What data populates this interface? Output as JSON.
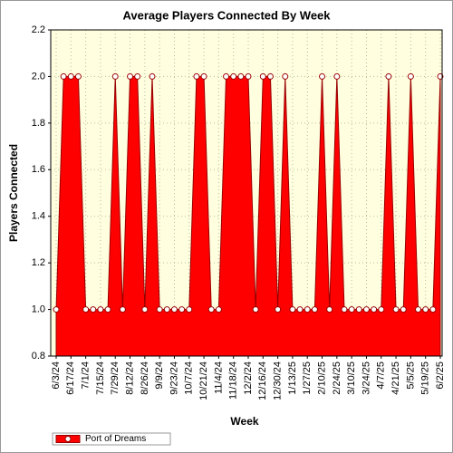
{
  "chart_data": {
    "type": "area",
    "title": "Average Players Connected By Week",
    "x_label": "Week",
    "y_label": "Players Connected",
    "categories": [
      "6/3/24",
      null,
      "6/17/24",
      null,
      "7/1/24",
      null,
      "7/15/24",
      null,
      "7/29/24",
      null,
      "8/12/24",
      null,
      "8/26/24",
      null,
      "9/9/24",
      null,
      "9/23/24",
      null,
      "10/7/24",
      null,
      "10/21/24",
      null,
      "11/4/24",
      null,
      "11/18/24",
      null,
      "12/2/24",
      null,
      "12/16/24",
      null,
      "12/30/24",
      null,
      "1/13/25",
      null,
      "1/27/25",
      null,
      "2/10/25",
      null,
      "2/24/25",
      null,
      "3/10/25",
      null,
      "3/24/25",
      null,
      "4/7/25",
      null,
      "4/21/25",
      null,
      "5/5/25",
      null,
      "5/19/25",
      null,
      "6/2/25"
    ],
    "series": [
      {
        "name": "Port of Dreams",
        "color": "#ff0000",
        "values": [
          1,
          2,
          2,
          2,
          1,
          1,
          1,
          1,
          2,
          1,
          2,
          2,
          1,
          2,
          1,
          1,
          1,
          1,
          1,
          2,
          2,
          1,
          1,
          2,
          2,
          2,
          2,
          1,
          2,
          2,
          1,
          2,
          1,
          1,
          1,
          1,
          2,
          1,
          2,
          1,
          1,
          1,
          1,
          1,
          1,
          2,
          1,
          1,
          2,
          1,
          1,
          1,
          2
        ]
      }
    ],
    "ylim": [
      0.8,
      2.2
    ],
    "yticks": [
      0.8,
      {
        "value": 1,
        "label": "1.0"
      },
      1.2,
      1.4,
      1.6,
      1.8,
      {
        "value": 2,
        "label": "2.0"
      },
      2.2
    ],
    "grid": true,
    "legend": "bottom-left"
  }
}
